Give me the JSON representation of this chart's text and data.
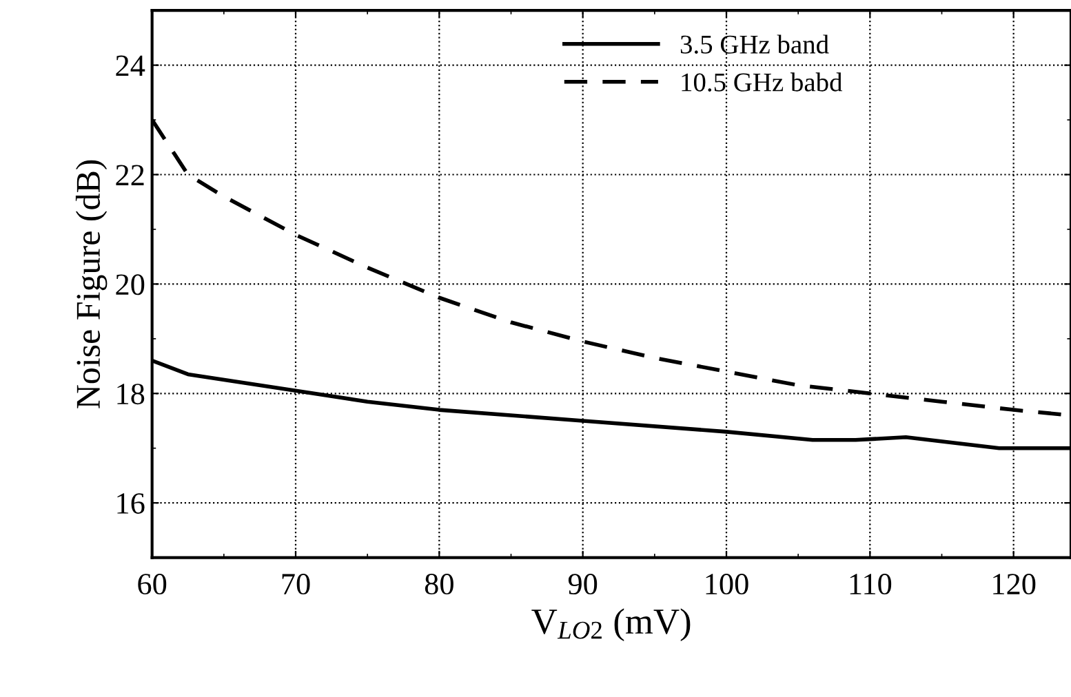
{
  "chart_data": {
    "type": "line",
    "xlabel": "V$_{LO2}$ (mV)",
    "ylabel": "Noise Figure (dB)",
    "xlim": [
      60,
      124
    ],
    "xticks": [
      60,
      70,
      80,
      90,
      100,
      110,
      120
    ],
    "ylim": [
      15,
      25
    ],
    "yticks": [
      16,
      18,
      20,
      22,
      24
    ],
    "grid": true,
    "legend": "top right",
    "series": [
      {
        "name": "3.5 GHz band",
        "color": "#000000",
        "line_style": "solid",
        "x": [
          60,
          62.5,
          70,
          75,
          80,
          90,
          100,
          106,
          109,
          112.5,
          119,
          124
        ],
        "values": [
          18.6,
          18.35,
          18.05,
          17.85,
          17.7,
          17.5,
          17.3,
          17.15,
          17.15,
          17.2,
          17.0,
          17.0
        ]
      },
      {
        "name": "10.5 GHz babd",
        "color": "#000000",
        "line_style": "dashed",
        "x": [
          60,
          62.5,
          65,
          70,
          75,
          80,
          85,
          90,
          95,
          100,
          105,
          110,
          115,
          120,
          124
        ],
        "values": [
          23.0,
          22.0,
          21.6,
          20.9,
          20.3,
          19.75,
          19.3,
          18.95,
          18.65,
          18.4,
          18.15,
          18.0,
          17.85,
          17.7,
          17.6
        ]
      }
    ]
  }
}
